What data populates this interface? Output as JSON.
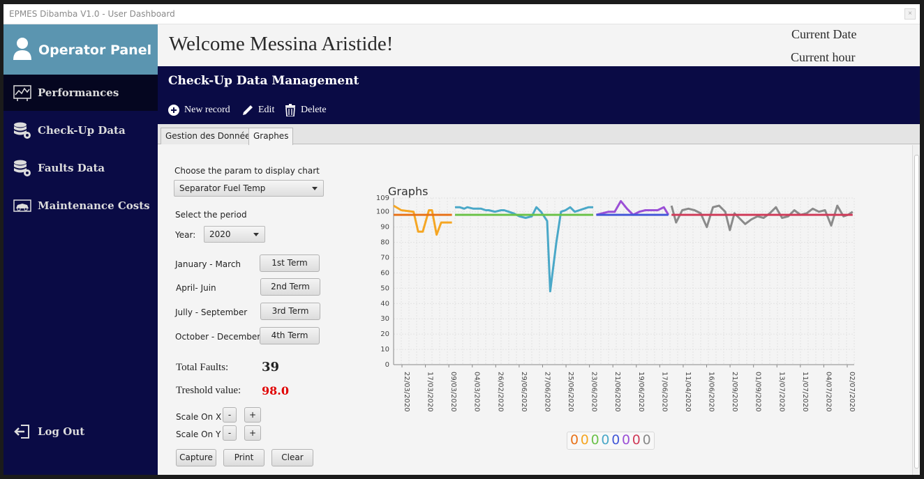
{
  "window": {
    "title": "EPMES Dibamba V1.0 - User Dashboard"
  },
  "sidebar": {
    "panel_title": "Operator Panel",
    "items": [
      {
        "label": "Performances",
        "icon": "performance-chart-icon"
      },
      {
        "label": "Check-Up Data",
        "icon": "database-gear-icon"
      },
      {
        "label": "Faults Data",
        "icon": "database-gear-icon"
      },
      {
        "label": "Maintenance Costs",
        "icon": "car-icon"
      }
    ],
    "logout_label": "Log Out"
  },
  "header": {
    "welcome": "Welcome Messina Aristide!",
    "current_date": "Current Date",
    "current_hour": "Current hour"
  },
  "section": {
    "title": "Check-Up Data Management",
    "new_record": "New record",
    "edit": "Edit",
    "delete": "Delete"
  },
  "tabs": [
    "Gestion des Données",
    "Graphes"
  ],
  "controls": {
    "param_label": "Choose the param to display chart",
    "param_value": "Separator Fuel Temp",
    "period_label": "Select the period",
    "year_label": "Year:",
    "year_value": "2020",
    "terms": [
      {
        "label": "January - March",
        "button": "1st Term"
      },
      {
        "label": "April- Juin",
        "button": "2nd Term"
      },
      {
        "label": "Jully - September",
        "button": "3rd Term"
      },
      {
        "label": "October - December",
        "button": "4th Term"
      }
    ],
    "total_faults_label": "Total Faults:",
    "total_faults_value": "39",
    "threshold_label": "Treshold value:",
    "threshold_value": "98.0",
    "scale_x_label": "Scale On X",
    "scale_y_label": "Scale On Y",
    "minus": "-",
    "plus": "+",
    "capture": "Capture",
    "print": "Print",
    "clear": "Clear",
    "threshold_color": "#e00000"
  },
  "chart_data": {
    "type": "line",
    "title": "Graphs",
    "ylim": [
      0,
      109
    ],
    "yticks": [
      0,
      10,
      20,
      30,
      40,
      50,
      60,
      70,
      80,
      90,
      100,
      109
    ],
    "xticks": [
      "22/03/2020",
      "17/03/2020",
      "09/03/2020",
      "04/03/2020",
      "26/02/2020",
      "29/06/2020",
      "27/06/2020",
      "25/06/2020",
      "23/06/2020",
      "21/06/2020",
      "19/06/2020",
      "17/06/2020",
      "11/04/2020",
      "16/06/2020",
      "21/09/2020",
      "01/09/2020",
      "13/07/2020",
      "11/07/2020",
      "04/07/2020",
      "02/07/2020"
    ],
    "grid": true,
    "legend_labels": [
      "0",
      "0",
      "0",
      "0",
      "0",
      "0",
      "0",
      "0"
    ],
    "legend_placement": "bottom",
    "series": [
      {
        "color": "#f5a623",
        "x": [
          0,
          0.5,
          1.3,
          1.6,
          1.9,
          2.3,
          2.5,
          2.8,
          3.1,
          3.3,
          3.6,
          3.8
        ],
        "values": [
          104,
          101,
          100,
          87,
          87,
          101,
          101,
          85,
          93,
          93,
          93,
          93
        ]
      },
      {
        "color": "#e8731a",
        "x": [
          0,
          3.8
        ],
        "values": [
          98,
          98
        ]
      },
      {
        "color": "#4aa8c8",
        "x": [
          4.0,
          4.3,
          4.6,
          4.8,
          5.2,
          5.5,
          5.7,
          6.0,
          6.2,
          6.6,
          7.0,
          7.2,
          7.5,
          7.8,
          8.2,
          8.6,
          9.0,
          9.3,
          9.6,
          10.0,
          10.2,
          10.6,
          10.9,
          11.2,
          11.5,
          11.8,
          12.1,
          12.4,
          12.7,
          13.0
        ],
        "values": [
          103,
          103,
          102,
          103,
          102,
          102,
          102,
          101,
          101,
          100,
          101,
          101,
          100,
          99,
          97,
          96,
          97,
          103,
          100,
          94,
          48,
          80,
          100,
          101,
          103,
          100,
          101,
          102,
          103,
          103
        ]
      },
      {
        "color": "#6cc24a",
        "x": [
          4.0,
          13.0
        ],
        "values": [
          98,
          98
        ]
      },
      {
        "color": "#9b4fd6",
        "x": [
          13.2,
          14.0,
          14.4,
          14.8,
          15.2,
          15.6,
          16.0,
          16.4,
          16.8,
          17.2,
          17.6,
          17.9
        ],
        "values": [
          98,
          100,
          100,
          107,
          102,
          98,
          100,
          101,
          101,
          101,
          103,
          98
        ]
      },
      {
        "color": "#4459d8",
        "x": [
          13.2,
          17.9
        ],
        "values": [
          98,
          98
        ]
      },
      {
        "color": "#8a8a8a",
        "x": [
          18.1,
          18.4,
          18.8,
          19.2,
          19.6,
          20.0,
          20.4,
          20.8,
          21.2,
          21.6,
          21.9,
          22.2,
          22.5,
          22.9,
          23.3,
          23.7,
          24.1,
          24.5,
          24.9,
          25.3,
          25.7,
          26.1,
          26.5,
          26.9,
          27.3,
          27.7,
          28.1,
          28.5,
          28.9,
          29.3,
          29.6,
          29.9
        ],
        "values": [
          104,
          93,
          101,
          102,
          101,
          99,
          90,
          103,
          104,
          100,
          88,
          99,
          96,
          92,
          95,
          97,
          96,
          99,
          103,
          96,
          97,
          101,
          98,
          99,
          102,
          100,
          101,
          91,
          104,
          97,
          98,
          100
        ]
      },
      {
        "color": "#d03c5a",
        "x": [
          18.1,
          29.9
        ],
        "values": [
          98,
          98
        ]
      }
    ]
  }
}
